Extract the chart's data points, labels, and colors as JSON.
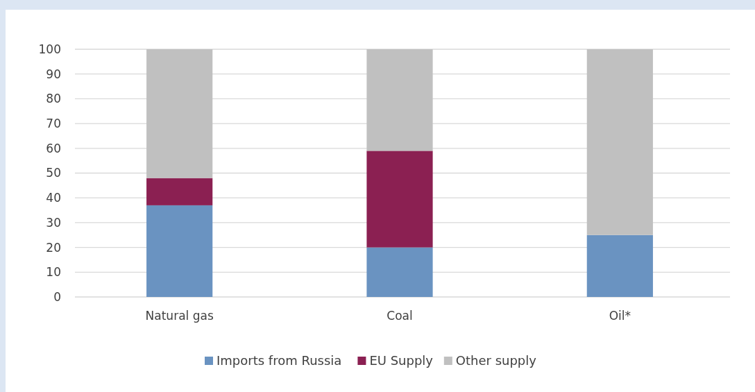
{
  "chart_data": {
    "type": "bar",
    "stacked": true,
    "categories": [
      "Natural gas",
      "Coal",
      "Oil*"
    ],
    "series": [
      {
        "name": "Imports from Russia",
        "color": "#6a93c1",
        "values": [
          37,
          20,
          25
        ]
      },
      {
        "name": "EU Supply",
        "color": "#8b2052",
        "values": [
          11,
          39,
          0
        ]
      },
      {
        "name": "Other supply",
        "color": "#c0c0c0",
        "values": [
          52,
          41,
          75
        ]
      }
    ],
    "ylim": [
      0,
      100
    ],
    "yticks": [
      0,
      10,
      20,
      30,
      40,
      50,
      60,
      70,
      80,
      90,
      100
    ],
    "grid": "y",
    "legend": "bottom"
  }
}
